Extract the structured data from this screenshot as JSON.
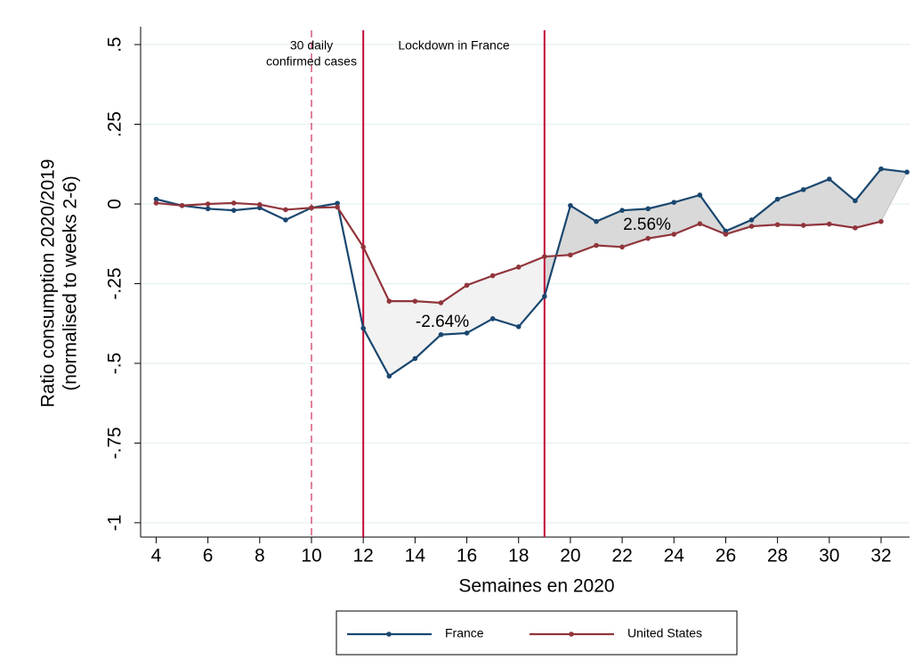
{
  "chart_data": {
    "type": "line",
    "xlabel": "Semaines en 2020",
    "ylabel": [
      "Ratio consumption 2020/2019",
      "(normalised to weeks 2-6)"
    ],
    "x": [
      4,
      5,
      6,
      7,
      8,
      9,
      10,
      11,
      12,
      13,
      14,
      15,
      16,
      17,
      18,
      19,
      20,
      21,
      22,
      23,
      24,
      25,
      26,
      27,
      28,
      29,
      30,
      31,
      32,
      33
    ],
    "series": [
      {
        "name": "France",
        "color": "#1a476f",
        "values": [
          0.015,
          -0.005,
          -0.015,
          -0.02,
          -0.012,
          -0.05,
          -0.012,
          0.002,
          -0.39,
          -0.54,
          -0.485,
          -0.41,
          -0.405,
          -0.36,
          -0.385,
          -0.29,
          -0.005,
          -0.055,
          -0.02,
          -0.015,
          0.005,
          0.028,
          -0.085,
          -0.05,
          0.015,
          0.045,
          0.078,
          0.01,
          0.11,
          0.1
        ]
      },
      {
        "name": "United States",
        "color": "#90353b",
        "values": [
          0.003,
          -0.005,
          0,
          0.003,
          -0.002,
          -0.018,
          -0.012,
          -0.01,
          -0.135,
          -0.305,
          -0.305,
          -0.31,
          -0.255,
          -0.225,
          -0.198,
          -0.165,
          -0.16,
          -0.13,
          -0.135,
          -0.108,
          -0.095,
          -0.062,
          -0.095,
          -0.07,
          -0.065,
          -0.067,
          -0.063,
          -0.075,
          -0.055,
          null
        ]
      }
    ],
    "xlim": [
      3.4,
      33.1
    ],
    "ylim": [
      -1.045,
      0.556
    ],
    "xticks": [
      4,
      6,
      8,
      10,
      12,
      14,
      16,
      18,
      20,
      22,
      24,
      26,
      28,
      30,
      32
    ],
    "yticks": [
      {
        "value": 0.5,
        "label": ".5"
      },
      {
        "value": 0.25,
        "label": ".25"
      },
      0,
      {
        "value": -0.25,
        "label": "-.25"
      },
      {
        "value": -0.5,
        "label": "-.5"
      },
      {
        "value": -0.75,
        "label": "-.75"
      },
      -1
    ],
    "grid": true,
    "vlines": [
      {
        "x": 10,
        "dashed": true,
        "label": [
          "30 daily",
          "confirmed cases"
        ]
      },
      {
        "x": 12,
        "dashed": false,
        "label": [
          "Lockdown in France"
        ]
      },
      {
        "x": 19,
        "dashed": false
      }
    ],
    "annotations": [
      "-2.64%",
      "2.56%"
    ],
    "legend": "bottom"
  }
}
